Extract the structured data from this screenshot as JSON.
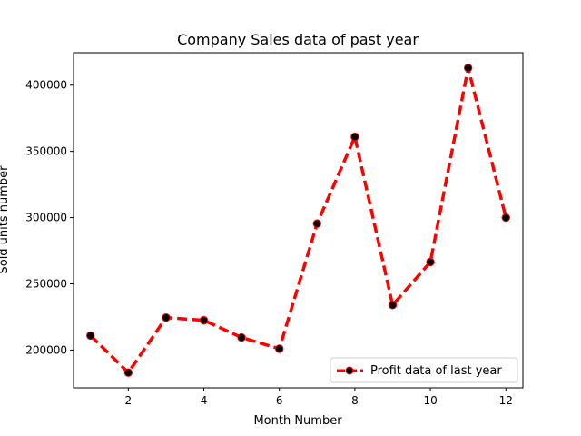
{
  "chart_data": {
    "type": "line",
    "title": "Company Sales data of past year",
    "xlabel": "Month Number",
    "ylabel": "Sold units number",
    "x": [
      1,
      2,
      3,
      4,
      5,
      6,
      7,
      8,
      9,
      10,
      11,
      12
    ],
    "series": [
      {
        "name": "Profit data of last year",
        "values": [
          211000,
          183000,
          224500,
          222500,
          209500,
          201000,
          295500,
          361000,
          234000,
          266500,
          413000,
          300000
        ],
        "color": "#ff0000",
        "line_style": "dashed",
        "marker": "circle",
        "marker_color": "#000000"
      }
    ],
    "xlim": [
      0.55,
      12.45
    ],
    "ylim": [
      171500,
      424500
    ],
    "xticks": [
      2,
      4,
      6,
      8,
      10,
      12
    ],
    "yticks": [
      200000,
      250000,
      300000,
      350000,
      400000
    ],
    "grid": false,
    "legend_position": "lower right"
  }
}
